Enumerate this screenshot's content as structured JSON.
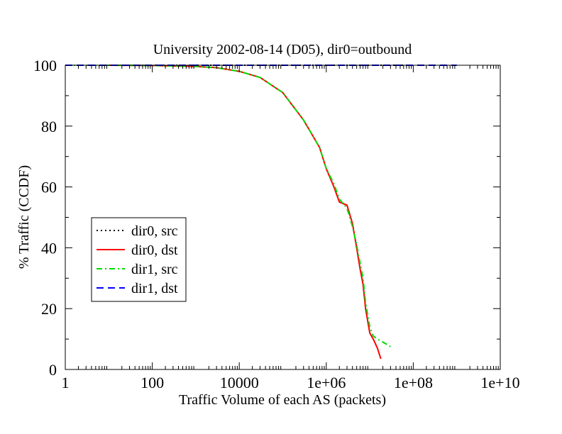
{
  "chart_data": {
    "type": "line",
    "title": "University 2002-08-14 (D05), dir0=outbound",
    "xlabel": "Traffic Volume of each AS (packets)",
    "ylabel": "% Traffic (CCDF)",
    "xscale": "log",
    "xlim": [
      1,
      10000000000
    ],
    "ylim": [
      0,
      100
    ],
    "x_ticks": [
      {
        "value": 1,
        "label": "1"
      },
      {
        "value": 100,
        "label": "100"
      },
      {
        "value": 10000,
        "label": "10000"
      },
      {
        "value": 1000000,
        "label": "1e+06"
      },
      {
        "value": 100000000,
        "label": "1e+08"
      },
      {
        "value": 10000000000,
        "label": "1e+10"
      }
    ],
    "y_ticks": [
      {
        "value": 0,
        "label": "0"
      },
      {
        "value": 20,
        "label": "20"
      },
      {
        "value": 40,
        "label": "40"
      },
      {
        "value": 60,
        "label": "60"
      },
      {
        "value": 80,
        "label": "80"
      },
      {
        "value": 100,
        "label": "100"
      }
    ],
    "grid": false,
    "legend_position": "left-middle",
    "series": [
      {
        "name": "dir0, src",
        "color": "#000000",
        "style": "dotted",
        "x": [
          1,
          10,
          100,
          1000,
          10000,
          100000,
          1000000,
          10000000,
          100000000
        ],
        "y": [
          100,
          100,
          100,
          100,
          100,
          100,
          100,
          100,
          100
        ]
      },
      {
        "name": "dir0, dst",
        "color": "#ff0000",
        "style": "solid",
        "x": [
          10,
          100,
          1000,
          3000,
          10000,
          30000,
          100000,
          300000,
          700000,
          1000000,
          1500000,
          2000000,
          3000000,
          4000000,
          5000000,
          6000000,
          7000000,
          8000000,
          10000000,
          12000000,
          15000000,
          18000000
        ],
        "y": [
          100,
          99.9,
          99.6,
          99.2,
          98,
          96,
          91,
          82,
          73,
          66,
          60,
          55,
          54,
          48,
          40,
          33,
          28,
          20,
          12,
          10,
          7,
          3.5
        ]
      },
      {
        "name": "dir1, src",
        "color": "#00dd00",
        "style": "dashdot",
        "x": [
          1,
          10,
          100,
          1000,
          3000,
          10000,
          30000,
          100000,
          300000,
          700000,
          1000000,
          1500000,
          2000000,
          3000000,
          4000000,
          5000000,
          6000000,
          7000000,
          8000000,
          10000000,
          12000000,
          15000000,
          20000000,
          30000000
        ],
        "y": [
          100,
          100,
          99.9,
          99.6,
          99.2,
          98,
          96,
          91,
          82,
          73,
          66,
          61,
          56,
          53,
          47,
          41,
          35,
          30,
          22,
          14,
          11,
          10,
          9,
          7.5
        ]
      },
      {
        "name": "dir1, dst",
        "color": "#0000ff",
        "style": "dashed",
        "x": [
          1,
          10,
          100,
          1000,
          10000,
          100000,
          1000000,
          10000000,
          100000000,
          1000000000
        ],
        "y": [
          100,
          100,
          100,
          100,
          100,
          100,
          100,
          100,
          100,
          100
        ]
      }
    ]
  }
}
